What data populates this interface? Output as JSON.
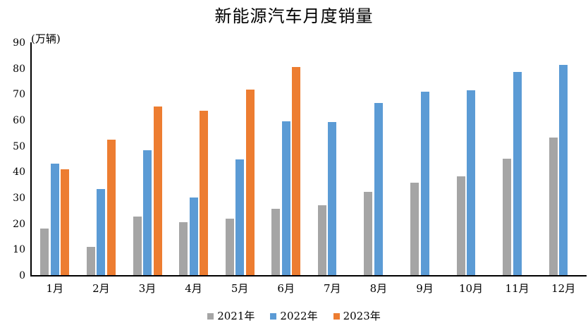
{
  "chart_data": {
    "type": "bar",
    "title": "新能源汽车月度销量",
    "unit_label": "(万辆)",
    "categories": [
      "1月",
      "2月",
      "3月",
      "4月",
      "5月",
      "6月",
      "7月",
      "8月",
      "9月",
      "10月",
      "11月",
      "12月"
    ],
    "series": [
      {
        "name": "2021年",
        "color": "#A5A5A5",
        "values": [
          17.9,
          11,
          22.6,
          20.6,
          21.7,
          25.6,
          27.1,
          32.1,
          35.7,
          38.3,
          45,
          53.1
        ]
      },
      {
        "name": "2022年",
        "color": "#5B9BD5",
        "values": [
          43.1,
          33.4,
          48.4,
          29.9,
          44.7,
          59.6,
          59.3,
          66.6,
          70.8,
          71.4,
          78.6,
          81.4
        ]
      },
      {
        "name": "2023年",
        "color": "#ED7D31",
        "values": [
          40.8,
          52.5,
          65.3,
          63.6,
          71.7,
          80.6,
          null,
          null,
          null,
          null,
          null,
          null
        ]
      }
    ],
    "ylim": [
      0,
      90
    ],
    "yticks": [
      0,
      10,
      20,
      30,
      40,
      50,
      60,
      70,
      80,
      90
    ],
    "grid": false,
    "legend_position": "bottom",
    "axis_color": "#000000",
    "background_color": "#FFFFFF"
  }
}
